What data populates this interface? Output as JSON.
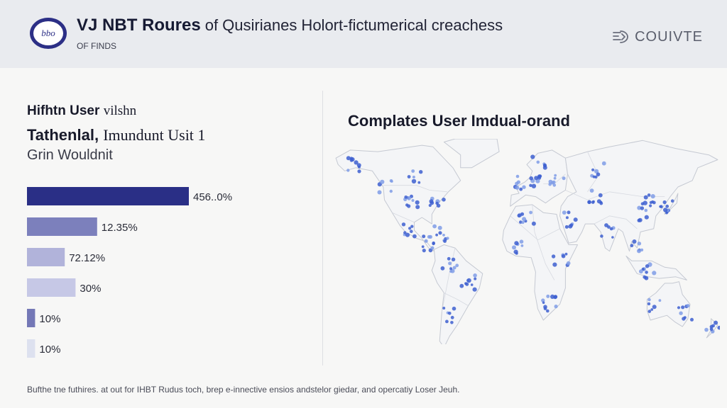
{
  "header": {
    "logo_text": "bbo",
    "app_name": "VJ NBT Roures",
    "app_subtitle": "of Qusirianes Holort-fictumerical creachess",
    "breadcrumb": "OF FINDS",
    "brand_label": "COUIVTE",
    "brand_icon": "brain-icon"
  },
  "left_panel": {
    "line1_bold": "Hifhtn User",
    "line1_thin": "vilshn",
    "line2_bold": "Tathenlal,",
    "line2_thin": "Imundunt Usit 1",
    "line3": "Grin Wouldnit"
  },
  "right_panel": {
    "title": "Complates User Imdual-orand"
  },
  "footer": {
    "text": "Bufthe tne futhires. at out for IHBT Rudus toch, brep e-innective ensios andstelor giedar, and opercatiy Loser Jeuh."
  },
  "colors": {
    "bar_colors": [
      "#2a2f86",
      "#7c80bc",
      "#b1b3da",
      "#c6c8e6",
      "#7478b6",
      "#dde1ef"
    ],
    "map_fill": "#f4f5f7",
    "map_outline": "#c5c9d2",
    "dot": "#3d5fd0",
    "dot_light": "#7f9ce6"
  },
  "chart_data": [
    {
      "type": "bar",
      "orientation": "horizontal",
      "categories": [
        "",
        "",
        "",
        "",
        "",
        ""
      ],
      "values": [
        456.0,
        12.35,
        72.12,
        30,
        10,
        10
      ],
      "value_labels": [
        "456..0%",
        "12.35%",
        "72.12%",
        "30%",
        "10%",
        "10%"
      ],
      "bar_length_fraction": [
        0.6,
        0.26,
        0.14,
        0.18,
        0.03,
        0.03
      ],
      "title": "",
      "xlabel": "",
      "ylabel": ""
    },
    {
      "type": "scatter",
      "subtype": "world-map-dot-density",
      "title": "Complates User Imdual-orand",
      "regions": [
        {
          "name": "north-america-west",
          "lon": -122,
          "lat": 47
        },
        {
          "name": "north-america-central",
          "lon": -100,
          "lat": 40
        },
        {
          "name": "north-america-east",
          "lon": -77,
          "lat": 40
        },
        {
          "name": "canada",
          "lon": -95,
          "lat": 55
        },
        {
          "name": "alaska",
          "lon": -150,
          "lat": 62
        },
        {
          "name": "mexico",
          "lon": -100,
          "lat": 22
        },
        {
          "name": "central-america",
          "lon": -85,
          "lat": 13
        },
        {
          "name": "caribbean",
          "lon": -72,
          "lat": 19
        },
        {
          "name": "south-america-north",
          "lon": -65,
          "lat": 0
        },
        {
          "name": "brazil",
          "lon": -48,
          "lat": -12
        },
        {
          "name": "south-america-south",
          "lon": -64,
          "lat": -32
        },
        {
          "name": "uk-europe-west",
          "lon": 0,
          "lat": 50
        },
        {
          "name": "europe-central",
          "lon": 15,
          "lat": 50
        },
        {
          "name": "europe-east",
          "lon": 32,
          "lat": 52
        },
        {
          "name": "scandinavia",
          "lon": 15,
          "lat": 62
        },
        {
          "name": "north-africa",
          "lon": 5,
          "lat": 28
        },
        {
          "name": "west-africa",
          "lon": -5,
          "lat": 10
        },
        {
          "name": "east-africa",
          "lon": 36,
          "lat": 2
        },
        {
          "name": "southern-africa",
          "lon": 25,
          "lat": -25
        },
        {
          "name": "middle-east",
          "lon": 45,
          "lat": 28
        },
        {
          "name": "russia",
          "lon": 70,
          "lat": 58
        },
        {
          "name": "central-asia",
          "lon": 68,
          "lat": 42
        },
        {
          "name": "india",
          "lon": 78,
          "lat": 20
        },
        {
          "name": "china",
          "lon": 108,
          "lat": 32
        },
        {
          "name": "china-north",
          "lon": 116,
          "lat": 40
        },
        {
          "name": "japan-korea",
          "lon": 133,
          "lat": 36
        },
        {
          "name": "southeast-asia",
          "lon": 103,
          "lat": 12
        },
        {
          "name": "indonesia",
          "lon": 115,
          "lat": -4
        },
        {
          "name": "australia-east",
          "lon": 148,
          "lat": -30
        },
        {
          "name": "australia-west",
          "lon": 120,
          "lat": -25
        },
        {
          "name": "new-zealand",
          "lon": 174,
          "lat": -41
        }
      ],
      "lon_range": [
        -170,
        180
      ],
      "lat_range": [
        -50,
        78
      ]
    }
  ]
}
